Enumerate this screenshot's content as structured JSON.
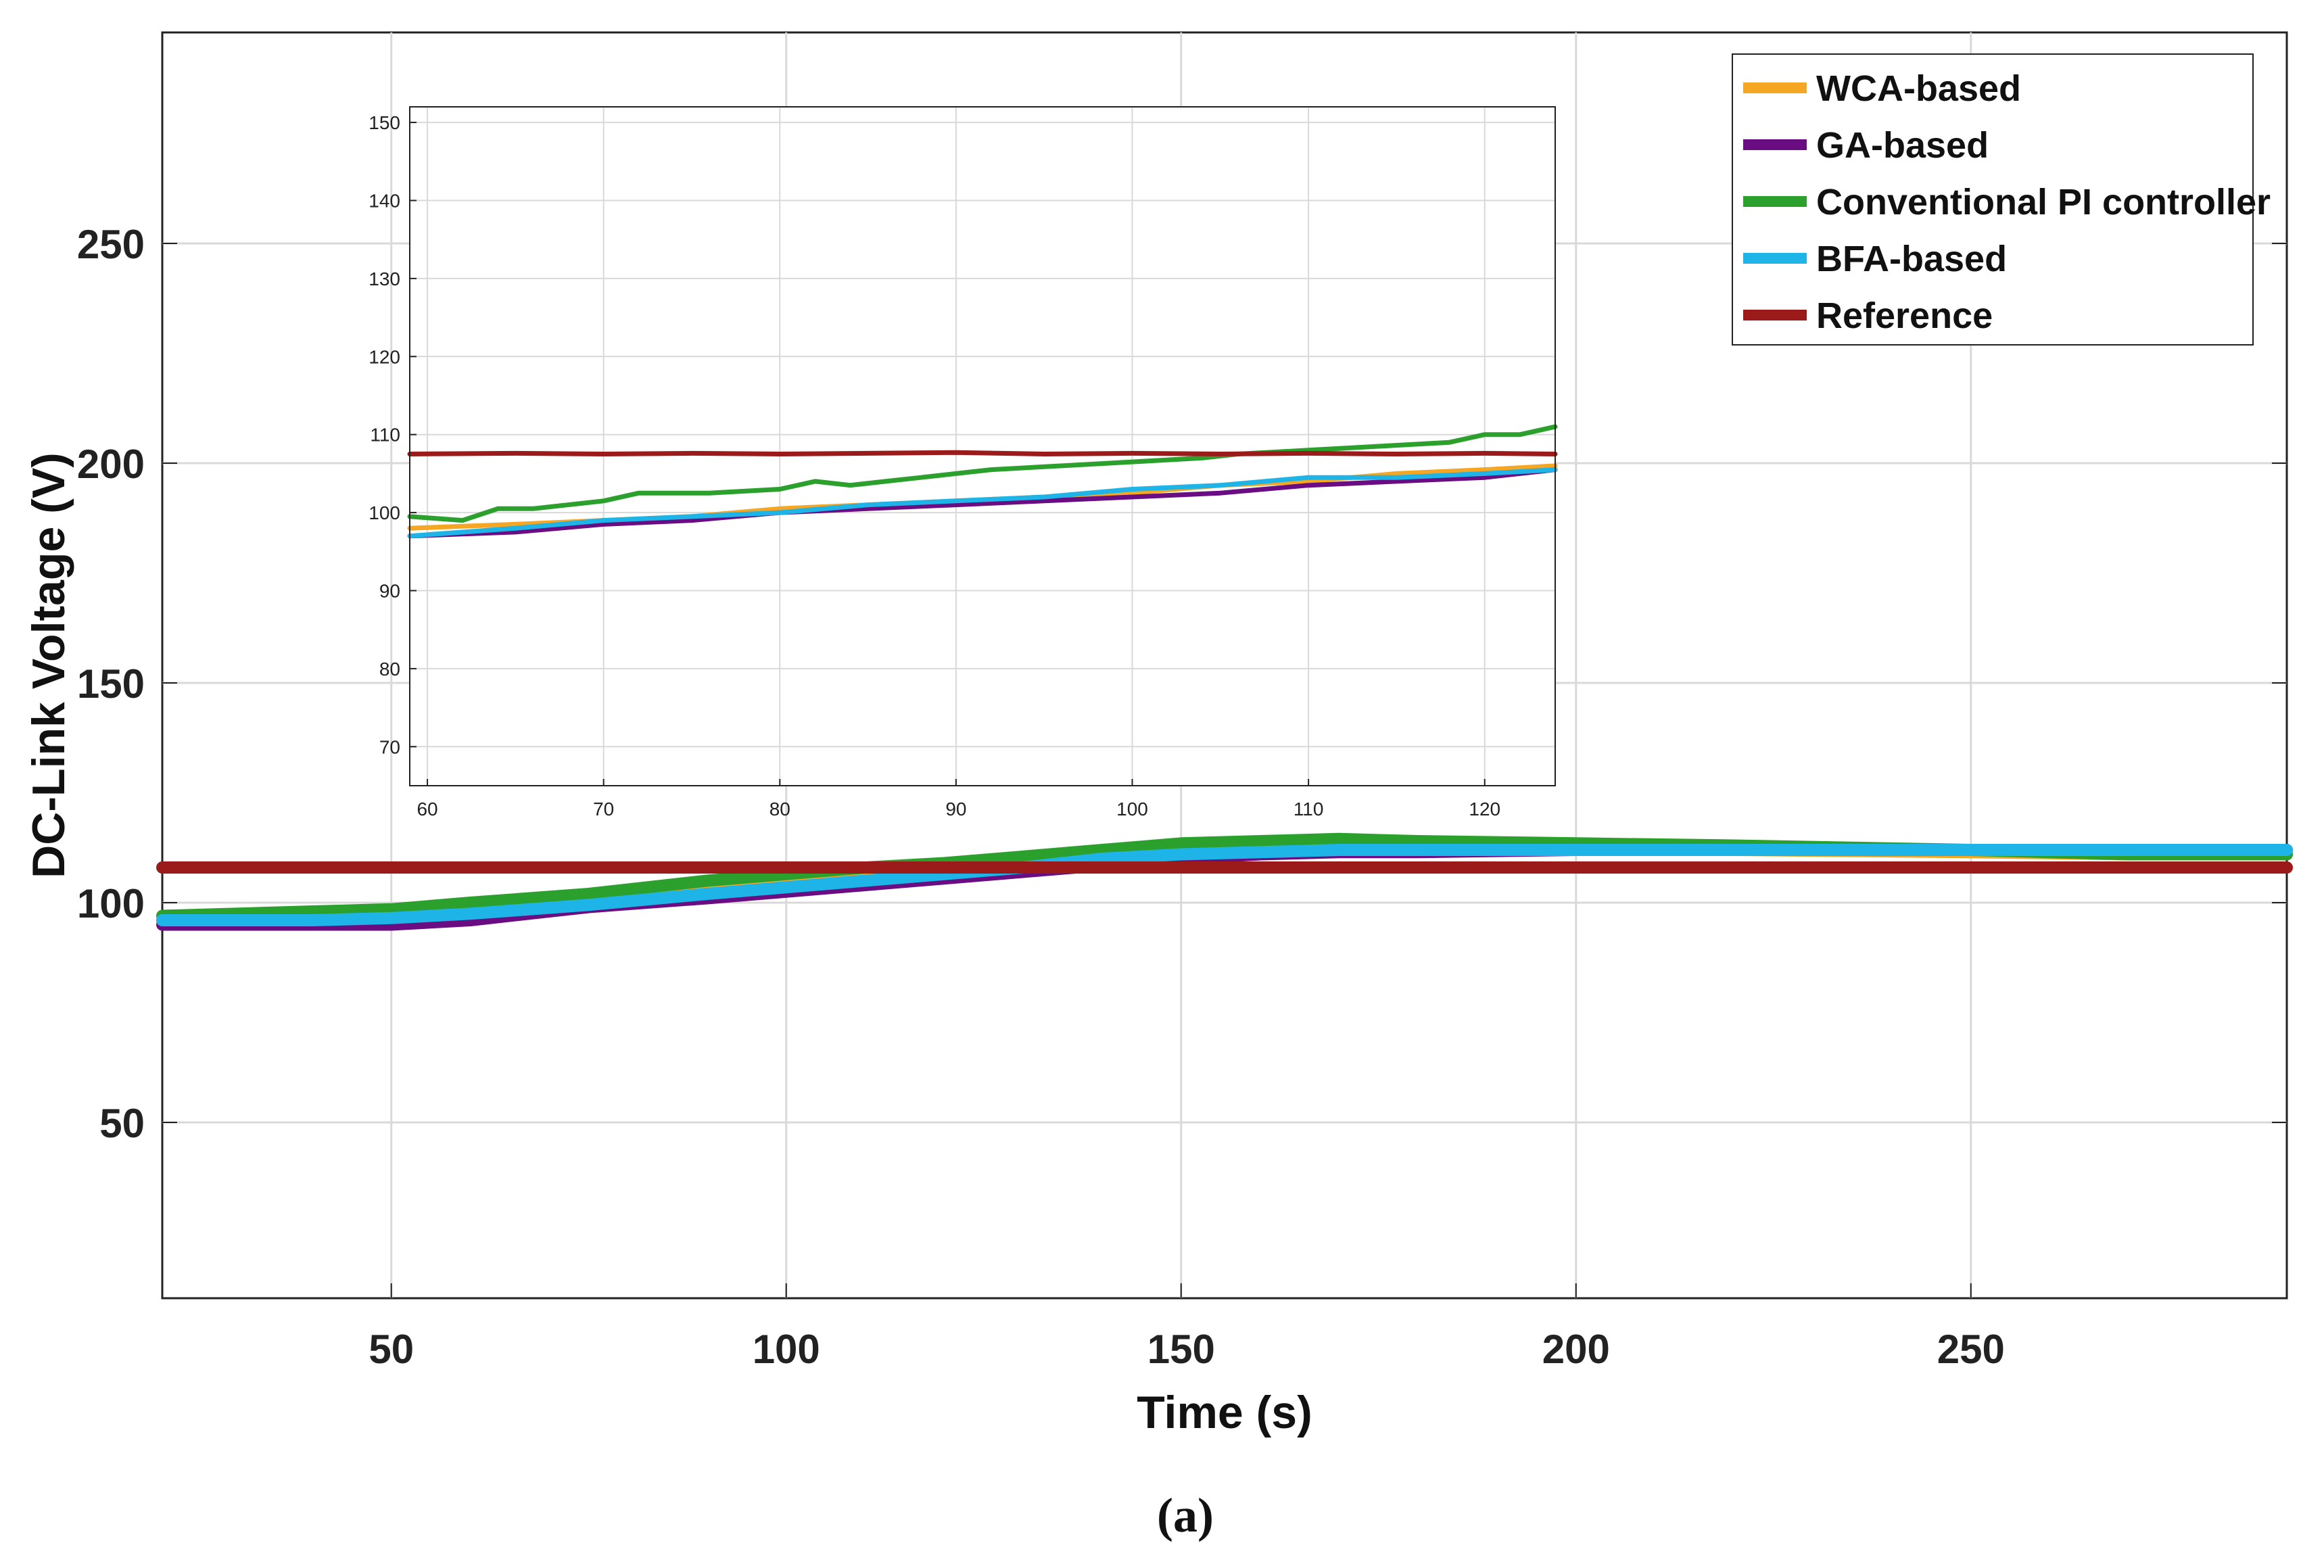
{
  "chart_data": [
    {
      "type": "line",
      "title": "",
      "xlabel": "Time (s)",
      "ylabel": "DC-Link Voltage (V)",
      "xlim": [
        21,
        290
      ],
      "ylim": [
        10,
        298
      ],
      "xticks": [
        50,
        100,
        150,
        200,
        250
      ],
      "yticks": [
        50,
        100,
        150,
        200,
        250
      ],
      "grid": true,
      "legend_position": "top-right",
      "series": [
        {
          "name": "WCA-based",
          "color": "#f5a623",
          "points": [
            [
              21,
              96
            ],
            [
              40,
              96.5
            ],
            [
              50,
              97
            ],
            [
              60,
              98
            ],
            [
              75,
              100
            ],
            [
              90,
              103
            ],
            [
              100,
              105
            ],
            [
              110,
              106.5
            ],
            [
              120,
              108
            ],
            [
              130,
              109
            ],
            [
              140,
              111
            ],
            [
              150,
              112
            ],
            [
              160,
              113
            ],
            [
              170,
              113.5
            ],
            [
              180,
              113
            ],
            [
              200,
              112.5
            ],
            [
              220,
              112
            ],
            [
              250,
              111.5
            ],
            [
              270,
              111
            ],
            [
              290,
              111
            ]
          ]
        },
        {
          "name": "GA-based",
          "color": "#6a0d83",
          "points": [
            [
              21,
              95
            ],
            [
              40,
              95
            ],
            [
              50,
              95
            ],
            [
              60,
              96
            ],
            [
              75,
              99
            ],
            [
              90,
              101
            ],
            [
              100,
              102.5
            ],
            [
              110,
              104
            ],
            [
              120,
              105.5
            ],
            [
              130,
              107
            ],
            [
              140,
              108.5
            ],
            [
              150,
              110
            ],
            [
              160,
              111
            ],
            [
              170,
              111.5
            ],
            [
              180,
              111.5
            ],
            [
              200,
              112
            ],
            [
              220,
              112
            ],
            [
              250,
              112
            ],
            [
              270,
              112
            ],
            [
              290,
              112
            ]
          ]
        },
        {
          "name": "Conventional PI controller",
          "color": "#2ca02c",
          "points": [
            [
              21,
              97
            ],
            [
              40,
              98
            ],
            [
              50,
              98.5
            ],
            [
              60,
              100
            ],
            [
              75,
              102
            ],
            [
              90,
              105
            ],
            [
              100,
              106.5
            ],
            [
              110,
              108
            ],
            [
              120,
              109
            ],
            [
              130,
              110.5
            ],
            [
              140,
              112
            ],
            [
              150,
              113.5
            ],
            [
              160,
              114
            ],
            [
              170,
              114.5
            ],
            [
              180,
              114
            ],
            [
              200,
              113.5
            ],
            [
              220,
              113
            ],
            [
              250,
              112
            ],
            [
              270,
              111
            ],
            [
              290,
              111
            ]
          ]
        },
        {
          "name": "BFA-based",
          "color": "#1eb4e8",
          "points": [
            [
              21,
              96
            ],
            [
              40,
              96
            ],
            [
              50,
              96.5
            ],
            [
              60,
              97.5
            ],
            [
              75,
              99.5
            ],
            [
              90,
              102
            ],
            [
              100,
              103.5
            ],
            [
              110,
              105
            ],
            [
              120,
              106.5
            ],
            [
              130,
              108
            ],
            [
              140,
              110
            ],
            [
              150,
              111
            ],
            [
              160,
              111.5
            ],
            [
              170,
              112
            ],
            [
              180,
              112
            ],
            [
              200,
              112
            ],
            [
              220,
              112
            ],
            [
              250,
              112
            ],
            [
              270,
              112
            ],
            [
              290,
              112
            ]
          ]
        },
        {
          "name": "Reference",
          "color": "#9b1b1b",
          "points": [
            [
              21,
              108
            ],
            [
              50,
              108
            ],
            [
              75,
              108
            ],
            [
              100,
              108
            ],
            [
              125,
              108
            ],
            [
              150,
              108
            ],
            [
              175,
              108
            ],
            [
              200,
              108
            ],
            [
              225,
              108
            ],
            [
              250,
              108
            ],
            [
              275,
              108
            ],
            [
              290,
              108
            ]
          ]
        }
      ]
    },
    {
      "type": "line",
      "title": "",
      "xlabel": "",
      "ylabel": "",
      "xlim": [
        59,
        124
      ],
      "ylim": [
        65,
        152
      ],
      "xticks": [
        60,
        70,
        80,
        90,
        100,
        110,
        120
      ],
      "yticks": [
        70,
        80,
        90,
        100,
        110,
        120,
        130,
        140,
        150
      ],
      "grid": true,
      "series": [
        {
          "name": "WCA-based",
          "color": "#f5a623",
          "points": [
            [
              59,
              98
            ],
            [
              65,
              98.5
            ],
            [
              70,
              99
            ],
            [
              75,
              99.5
            ],
            [
              80,
              100.5
            ],
            [
              85,
              101
            ],
            [
              90,
              101.5
            ],
            [
              95,
              102
            ],
            [
              100,
              102.5
            ],
            [
              105,
              103.5
            ],
            [
              110,
              104
            ],
            [
              115,
              105
            ],
            [
              120,
              105.5
            ],
            [
              124,
              106
            ]
          ]
        },
        {
          "name": "GA-based",
          "color": "#6a0d83",
          "points": [
            [
              59,
              97
            ],
            [
              65,
              97.5
            ],
            [
              70,
              98.5
            ],
            [
              75,
              99
            ],
            [
              80,
              100
            ],
            [
              85,
              100.5
            ],
            [
              90,
              101
            ],
            [
              95,
              101.5
            ],
            [
              100,
              102
            ],
            [
              105,
              102.5
            ],
            [
              110,
              103.5
            ],
            [
              115,
              104
            ],
            [
              120,
              104.5
            ],
            [
              124,
              105.5
            ]
          ]
        },
        {
          "name": "Conventional PI controller",
          "color": "#2ca02c",
          "points": [
            [
              59,
              99.5
            ],
            [
              62,
              99
            ],
            [
              64,
              100.5
            ],
            [
              66,
              100.5
            ],
            [
              70,
              101.5
            ],
            [
              72,
              102.5
            ],
            [
              76,
              102.5
            ],
            [
              80,
              103
            ],
            [
              82,
              104
            ],
            [
              84,
              103.5
            ],
            [
              86,
              104
            ],
            [
              88,
              104.5
            ],
            [
              90,
              105
            ],
            [
              92,
              105.5
            ],
            [
              96,
              106
            ],
            [
              100,
              106.5
            ],
            [
              104,
              107
            ],
            [
              106,
              107.5
            ],
            [
              110,
              108
            ],
            [
              114,
              108.5
            ],
            [
              118,
              109
            ],
            [
              120,
              110
            ],
            [
              122,
              110
            ],
            [
              124,
              111
            ]
          ]
        },
        {
          "name": "BFA-based",
          "color": "#1eb4e8",
          "points": [
            [
              59,
              97
            ],
            [
              65,
              98
            ],
            [
              70,
              99
            ],
            [
              75,
              99.5
            ],
            [
              80,
              100
            ],
            [
              85,
              101
            ],
            [
              90,
              101.5
            ],
            [
              95,
              102
            ],
            [
              100,
              103
            ],
            [
              105,
              103.5
            ],
            [
              110,
              104.5
            ],
            [
              115,
              104.5
            ],
            [
              120,
              105
            ],
            [
              124,
              105.5
            ]
          ]
        },
        {
          "name": "Reference",
          "color": "#9b1b1b",
          "points": [
            [
              59,
              107.5
            ],
            [
              65,
              107.6
            ],
            [
              70,
              107.5
            ],
            [
              75,
              107.6
            ],
            [
              80,
              107.5
            ],
            [
              85,
              107.6
            ],
            [
              90,
              107.7
            ],
            [
              95,
              107.5
            ],
            [
              100,
              107.6
            ],
            [
              105,
              107.5
            ],
            [
              110,
              107.6
            ],
            [
              115,
              107.5
            ],
            [
              120,
              107.6
            ],
            [
              124,
              107.5
            ]
          ]
        }
      ]
    }
  ],
  "legend": {
    "entries": [
      {
        "label": "WCA-based",
        "color": "#f5a623"
      },
      {
        "label": "GA-based",
        "color": "#6a0d83"
      },
      {
        "label": "Conventional PI controller",
        "color": "#2ca02c"
      },
      {
        "label": "BFA-based",
        "color": "#1eb4e8"
      },
      {
        "label": "Reference",
        "color": "#9b1b1b"
      }
    ]
  },
  "caption": {
    "open": "(",
    "letter": "a",
    "close": ")"
  }
}
